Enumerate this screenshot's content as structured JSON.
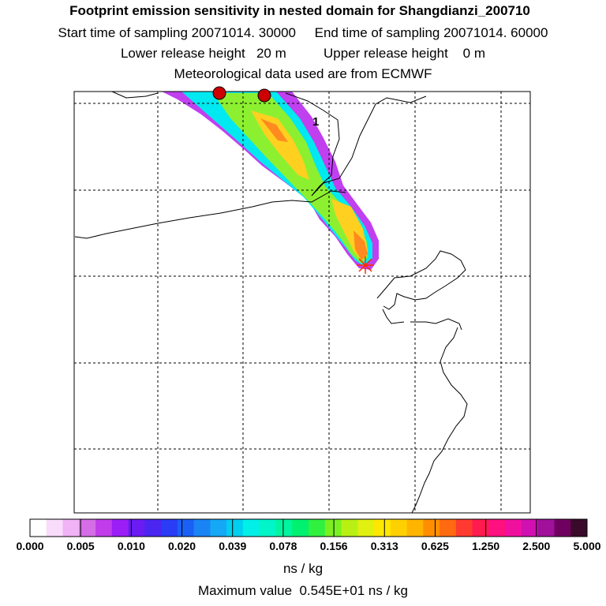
{
  "header": {
    "title": "Footprint emission sensitivity in nested domain for Shangdianzi_200710",
    "sampling": "Start time of sampling 20071014. 30000     End time of sampling 20071014. 60000",
    "release": "Lower release height   20 m          Upper release height    0 m",
    "met": "Meteorological data used are from ECMWF"
  },
  "map": {
    "site_label": "1",
    "colors": {
      "coast": "#000000",
      "grid": "#000000",
      "receptor": "#cc0000",
      "marker": "#ff2a00"
    }
  },
  "colorbar": {
    "ticks": [
      "0.000",
      "0.005",
      "0.010",
      "0.020",
      "0.039",
      "0.078",
      "0.156",
      "0.313",
      "0.625",
      "1.250",
      "2.500",
      "5.000"
    ],
    "colors": [
      "#ffffff",
      "#f9dcfb",
      "#f0b3f6",
      "#d56ee6",
      "#c03de9",
      "#9a1ef5",
      "#6a1cf3",
      "#4a26f0",
      "#2a3cf5",
      "#1a60f5",
      "#1a84f5",
      "#14a8f5",
      "#00d0f0",
      "#00f0e8",
      "#00f5c8",
      "#00f5a0",
      "#00f070",
      "#30f040",
      "#7af020",
      "#b8f014",
      "#e0f010",
      "#ffe800",
      "#ffd000",
      "#ffb400",
      "#ff8e00",
      "#ff6a10",
      "#ff3a30",
      "#ff1a50",
      "#ff1080",
      "#f010a0",
      "#d010b0",
      "#a0109a",
      "#700060",
      "#3a0a2a"
    ],
    "unit": "ns / kg",
    "max_value": "Maximum value  0.545E+01 ns / kg"
  }
}
